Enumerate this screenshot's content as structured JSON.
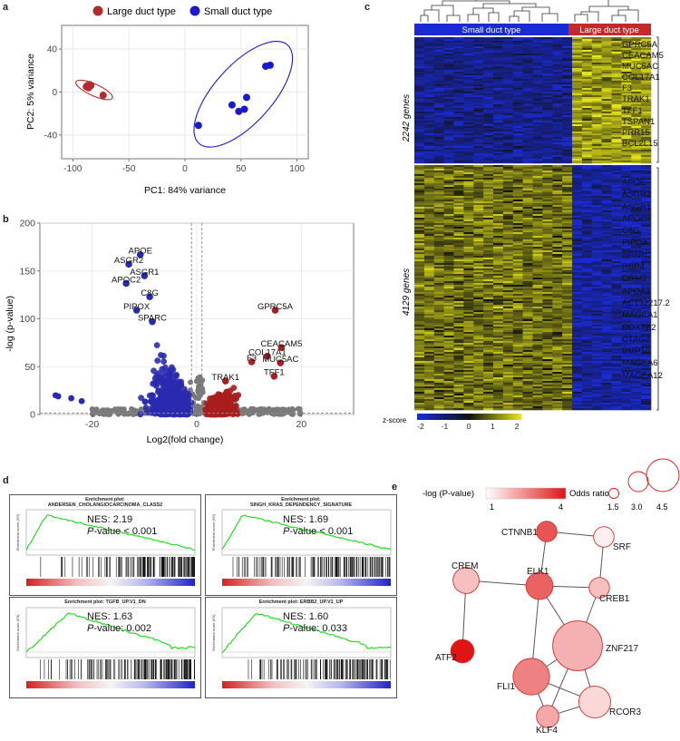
{
  "panels": {
    "a": "a",
    "b": "b",
    "c": "c",
    "d": "d",
    "e": "e"
  },
  "chart_data": [
    {
      "panel": "a",
      "type": "scatter",
      "title": "",
      "xlabel": "PC1: 84% variance",
      "ylabel": "PC2: 5% variance",
      "xlim": [
        -110,
        110
      ],
      "ylim": [
        -62,
        62
      ],
      "xticks": [
        -100,
        -50,
        0,
        50,
        100
      ],
      "yticks": [
        -40,
        0,
        40
      ],
      "legend": [
        "Large duct type",
        "Small duct type"
      ],
      "colors": {
        "large": "#b22a2a",
        "small": "#1a1acc"
      },
      "series": [
        {
          "name": "Large duct type",
          "points": [
            [
              -87,
              6
            ],
            [
              -85,
              7
            ],
            [
              -88,
              5
            ],
            [
              -86,
              4
            ],
            [
              -84,
              6
            ],
            [
              -73,
              -3
            ]
          ]
        },
        {
          "name": "Small duct type",
          "points": [
            [
              12,
              -31
            ],
            [
              42,
              -12
            ],
            [
              48,
              -18
            ],
            [
              53,
              -16
            ],
            [
              55,
              -5
            ],
            [
              72,
              24
            ],
            [
              76,
              25
            ]
          ]
        }
      ]
    },
    {
      "panel": "b",
      "type": "scatter",
      "xlabel": "Log2(fold change)",
      "ylabel": "-log (p-value)",
      "xlim": [
        -30,
        30
      ],
      "ylim": [
        0,
        200
      ],
      "xticks": [
        -20,
        0,
        20
      ],
      "yticks": [
        0,
        50,
        100,
        150,
        200
      ],
      "labels": [
        {
          "text": "APOE",
          "x": -10.8,
          "y": 170
        },
        {
          "text": "ASGR2",
          "x": -13.0,
          "y": 160
        },
        {
          "text": "ASGR1",
          "x": -10.0,
          "y": 148
        },
        {
          "text": "APOC2",
          "x": -13.5,
          "y": 140
        },
        {
          "text": "C8G",
          "x": -9.0,
          "y": 126
        },
        {
          "text": "PIPOX",
          "x": -11.5,
          "y": 112
        },
        {
          "text": "SPARC",
          "x": -8.5,
          "y": 100
        },
        {
          "text": "GPRC5A",
          "x": 15.0,
          "y": 112
        },
        {
          "text": "CEACAM5",
          "x": 16.2,
          "y": 73
        },
        {
          "text": "COL17A1",
          "x": 13.5,
          "y": 64
        },
        {
          "text": "F3",
          "x": 10.5,
          "y": 58
        },
        {
          "text": "MUC5AC",
          "x": 16.0,
          "y": 57
        },
        {
          "text": "TFF1",
          "x": 14.8,
          "y": 43
        },
        {
          "text": "TRAK1",
          "x": 5.5,
          "y": 38
        }
      ]
    },
    {
      "panel": "c",
      "type": "heatmap",
      "column_groups": [
        "Small duct type",
        "Large duct type"
      ],
      "row_groups": [
        {
          "label": "2242 genes",
          "genes": [
            "GPRC5A",
            "CEACAM5",
            "MUC5AC",
            "COL17A1",
            "F3",
            "TRAK1",
            "TFF1",
            "TSPAN1",
            "PRR15",
            "BCL2L15"
          ]
        },
        {
          "label": "4129 genes",
          "genes": [
            "APOE",
            "ASGR2",
            "ASGR1",
            "APOC2",
            "C8G",
            "PIPOX",
            "SPARC",
            "RBP4",
            "ORM2",
            "APOA1",
            "AC132217.2",
            "MAGEA1",
            "COX7B2",
            "CTAG2",
            "BMP10",
            "MAGEA6",
            "MAGEA12"
          ]
        }
      ],
      "colorbar": {
        "label": "z-score",
        "ticks": [
          "-2",
          "-1",
          "0",
          "1",
          "2"
        ]
      }
    },
    {
      "panel": "d",
      "type": "line",
      "plots": [
        {
          "title": "Enrichment plot:",
          "name": "ANDERSEN_CHOLANGIOCARCINOMA_CLASS2",
          "nes": "NES: 2.19",
          "p": "P-value < 0.001",
          "ylabel": "Enrichment score (ES)"
        },
        {
          "title": "Enrichment plot:",
          "name": "SINGH_KRAS_DEPENDENCY_SIGNATURE",
          "nes": "NES: 1.69",
          "p": "P-value < 0.001",
          "ylabel": "Enrichment score (ES)"
        },
        {
          "title": "Enrichment plot: TGFB_UP.V1_DN",
          "name": "",
          "nes": "NES: 1.63",
          "p": "P-value: 0.002",
          "ylabel": "Enrichment score (ES)"
        },
        {
          "title": "Enrichment plot: ERBB2_UP.V1_UP",
          "name": "",
          "nes": "NES: 1.60",
          "p": "P-value: 0.033",
          "ylabel": "Enrichment score (ES)"
        }
      ]
    },
    {
      "panel": "e",
      "type": "network",
      "legend": {
        "pval_label": "-log (P-value)",
        "pval_min": "1",
        "pval_max": "4",
        "odds_label": "Odds ratio",
        "odds_values": [
          "1.5",
          "3.0",
          "4.5"
        ]
      },
      "nodes": [
        {
          "id": "CTNNB1",
          "pval": 3.2,
          "odds": 1.4
        },
        {
          "id": "SRF",
          "pval": 1.2,
          "odds": 1.4
        },
        {
          "id": "CREM",
          "pval": 1.8,
          "odds": 2.0
        },
        {
          "id": "ELK1",
          "pval": 3.0,
          "odds": 2.1
        },
        {
          "id": "CREB1",
          "pval": 1.8,
          "odds": 1.4
        },
        {
          "id": "ZNF217",
          "pval": 2.0,
          "odds": 4.5
        },
        {
          "id": "ATF2",
          "pval": 4.0,
          "odds": 1.7
        },
        {
          "id": "FLI1",
          "pval": 2.6,
          "odds": 3.1
        },
        {
          "id": "RCOR3",
          "pval": 1.5,
          "odds": 2.6
        },
        {
          "id": "KLF4",
          "pval": 2.1,
          "odds": 1.6
        }
      ],
      "edges": [
        [
          "CTNNB1",
          "SRF"
        ],
        [
          "CTNNB1",
          "ELK1"
        ],
        [
          "SRF",
          "CREB1"
        ],
        [
          "CREM",
          "ELK1"
        ],
        [
          "ELK1",
          "CREB1"
        ],
        [
          "CREM",
          "ATF2"
        ],
        [
          "ELK1",
          "ZNF217"
        ],
        [
          "ELK1",
          "FLI1"
        ],
        [
          "CREB1",
          "ZNF217"
        ],
        [
          "ZNF217",
          "FLI1"
        ],
        [
          "ZNF217",
          "RCOR3"
        ],
        [
          "ZNF217",
          "KLF4"
        ],
        [
          "FLI1",
          "RCOR3"
        ],
        [
          "FLI1",
          "KLF4"
        ],
        [
          "RCOR3",
          "KLF4"
        ]
      ]
    }
  ]
}
